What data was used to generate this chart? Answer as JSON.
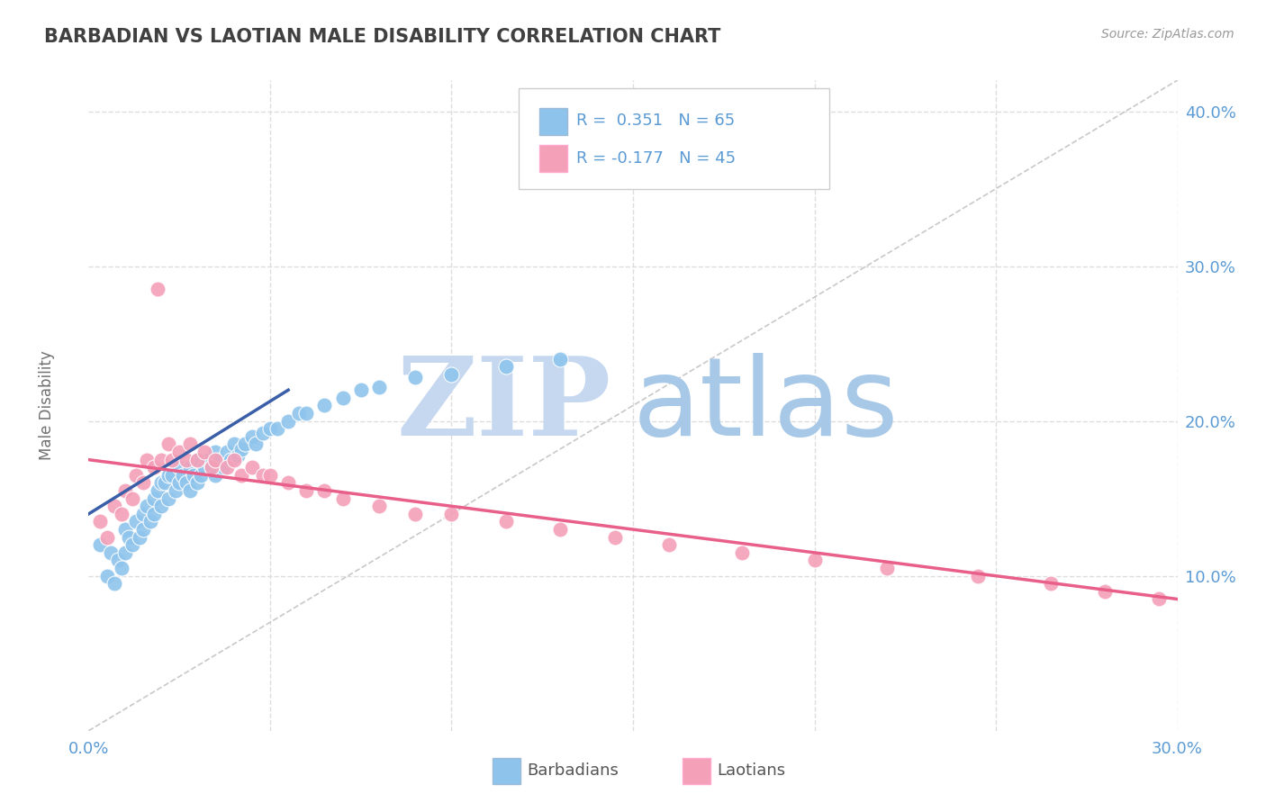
{
  "title": "BARBADIAN VS LAOTIAN MALE DISABILITY CORRELATION CHART",
  "source_text": "Source: ZipAtlas.com",
  "ylabel": "Male Disability",
  "xmin": 0.0,
  "xmax": 0.3,
  "ymin": 0.0,
  "ymax": 0.42,
  "yticks_right": [
    0.1,
    0.2,
    0.3,
    0.4
  ],
  "ytick_labels_right": [
    "10.0%",
    "20.0%",
    "30.0%",
    "40.0%"
  ],
  "legend_r1": "R =  0.351",
  "legend_n1": "N = 65",
  "legend_r2": "R = -0.177",
  "legend_n2": "N = 45",
  "color_blue": "#8EC4EC",
  "color_pink": "#F4A0B8",
  "color_blue_line": "#3A5FA8",
  "color_pink_line": "#E8608A",
  "color_diag_line": "#BBBBBB",
  "watermark_zip": "ZIP",
  "watermark_atlas": "atlas",
  "watermark_color_zip": "#C5D8F0",
  "watermark_color_atlas": "#A8C8E8",
  "background_color": "#FFFFFF",
  "grid_color": "#DDDDDD",
  "title_color": "#404040",
  "axis_label_color": "#707070",
  "tick_color": "#5B9BD5",
  "barbadian_x": [
    0.003,
    0.005,
    0.006,
    0.007,
    0.008,
    0.009,
    0.01,
    0.01,
    0.011,
    0.012,
    0.013,
    0.014,
    0.015,
    0.015,
    0.016,
    0.017,
    0.018,
    0.018,
    0.019,
    0.02,
    0.02,
    0.021,
    0.022,
    0.022,
    0.023,
    0.024,
    0.025,
    0.025,
    0.026,
    0.027,
    0.028,
    0.028,
    0.029,
    0.03,
    0.03,
    0.031,
    0.032,
    0.033,
    0.034,
    0.035,
    0.035,
    0.036,
    0.037,
    0.038,
    0.039,
    0.04,
    0.041,
    0.042,
    0.043,
    0.045,
    0.046,
    0.048,
    0.05,
    0.052,
    0.055,
    0.058,
    0.06,
    0.065,
    0.07,
    0.075,
    0.08,
    0.09,
    0.1,
    0.115,
    0.13
  ],
  "barbadian_y": [
    0.12,
    0.1,
    0.115,
    0.095,
    0.11,
    0.105,
    0.13,
    0.115,
    0.125,
    0.12,
    0.135,
    0.125,
    0.14,
    0.13,
    0.145,
    0.135,
    0.15,
    0.14,
    0.155,
    0.16,
    0.145,
    0.16,
    0.165,
    0.15,
    0.165,
    0.155,
    0.17,
    0.16,
    0.165,
    0.16,
    0.17,
    0.155,
    0.165,
    0.175,
    0.16,
    0.165,
    0.17,
    0.175,
    0.17,
    0.18,
    0.165,
    0.175,
    0.17,
    0.18,
    0.175,
    0.185,
    0.178,
    0.182,
    0.185,
    0.19,
    0.185,
    0.192,
    0.195,
    0.195,
    0.2,
    0.205,
    0.205,
    0.21,
    0.215,
    0.22,
    0.222,
    0.228,
    0.23,
    0.235,
    0.24
  ],
  "laotian_x": [
    0.003,
    0.005,
    0.007,
    0.009,
    0.01,
    0.012,
    0.013,
    0.015,
    0.016,
    0.018,
    0.019,
    0.02,
    0.022,
    0.023,
    0.025,
    0.027,
    0.028,
    0.03,
    0.032,
    0.034,
    0.035,
    0.038,
    0.04,
    0.042,
    0.045,
    0.048,
    0.05,
    0.055,
    0.06,
    0.065,
    0.07,
    0.08,
    0.09,
    0.1,
    0.115,
    0.13,
    0.145,
    0.16,
    0.18,
    0.2,
    0.22,
    0.245,
    0.265,
    0.28,
    0.295
  ],
  "laotian_y": [
    0.135,
    0.125,
    0.145,
    0.14,
    0.155,
    0.15,
    0.165,
    0.16,
    0.175,
    0.17,
    0.285,
    0.175,
    0.185,
    0.175,
    0.18,
    0.175,
    0.185,
    0.175,
    0.18,
    0.17,
    0.175,
    0.17,
    0.175,
    0.165,
    0.17,
    0.165,
    0.165,
    0.16,
    0.155,
    0.155,
    0.15,
    0.145,
    0.14,
    0.14,
    0.135,
    0.13,
    0.125,
    0.12,
    0.115,
    0.11,
    0.105,
    0.1,
    0.095,
    0.09,
    0.085
  ],
  "blue_trend_x0": 0.0,
  "blue_trend_y0": 0.14,
  "blue_trend_x1": 0.055,
  "blue_trend_y1": 0.22,
  "pink_trend_x0": 0.0,
  "pink_trend_y0": 0.175,
  "pink_trend_x1": 0.3,
  "pink_trend_y1": 0.085
}
